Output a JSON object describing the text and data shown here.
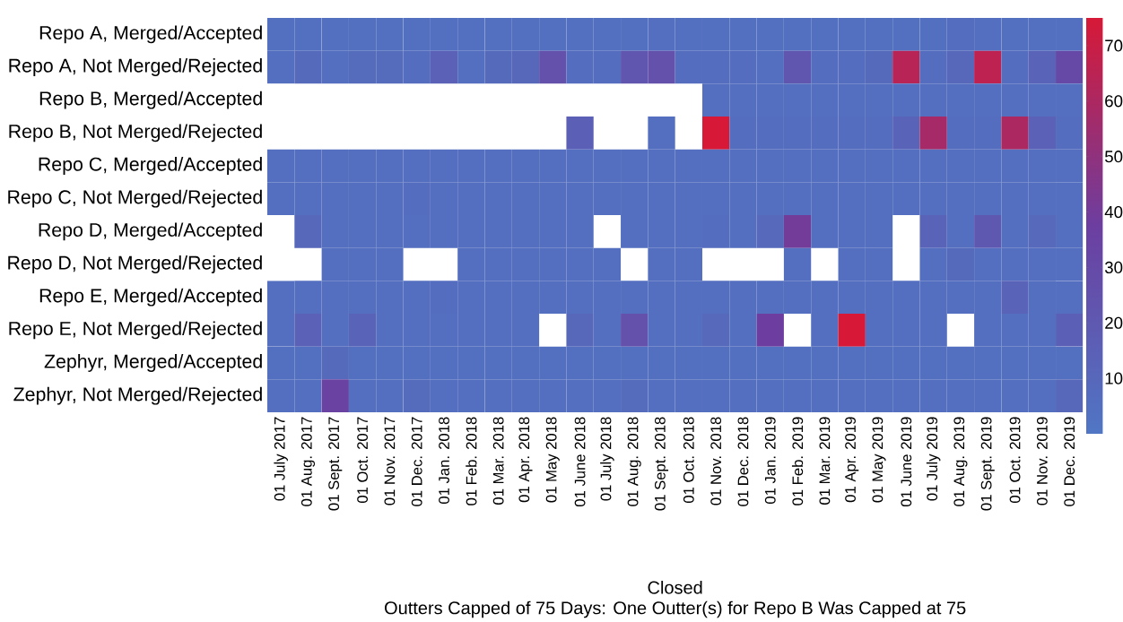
{
  "chart_data": {
    "type": "heatmap",
    "xlabel": "Closed",
    "annotations": [
      "Outters Capped of 75 Days: One Outter(s) for Repo B Was Capped at 75"
    ],
    "categories": [
      "01 July 2017",
      "01 Aug. 2017",
      "01 Sept. 2017",
      "01 Oct. 2017",
      "01 Nov. 2017",
      "01 Dec. 2017",
      "01 Jan. 2018",
      "01 Feb. 2018",
      "01 Mar. 2018",
      "01 Apr. 2018",
      "01 May 2018",
      "01 June 2018",
      "01 July 2018",
      "01 Aug. 2018",
      "01 Sept. 2018",
      "01 Oct. 2018",
      "01 Nov. 2018",
      "01 Dec. 2018",
      "01 Jan. 2019",
      "01 Feb. 2019",
      "01 Mar. 2019",
      "01 Apr. 2019",
      "01 May 2019",
      "01 June 2019",
      "01 July 2019",
      "01 Aug. 2019",
      "01 Sept. 2019",
      "01 Oct. 2019",
      "01 Nov. 2019",
      "01 Dec. 2019"
    ],
    "y_categories": [
      "Repo A, Merged/Accepted",
      "Repo A, Not Merged/Rejected",
      "Repo B, Merged/Accepted",
      "Repo B, Not Merged/Rejected",
      "Repo C, Merged/Accepted",
      "Repo C, Not Merged/Rejected",
      "Repo D, Merged/Accepted",
      "Repo D, Not Merged/Rejected",
      "Repo E, Merged/Accepted",
      "Repo E, Not Merged/Rejected",
      "Zephyr, Merged/Accepted",
      "Zephyr, Not Merged/Rejected"
    ],
    "cells": [
      [
        4,
        4,
        4,
        4,
        4,
        4,
        4,
        4,
        4,
        4,
        4,
        4,
        4,
        4,
        5,
        4,
        4,
        4,
        4,
        4,
        4,
        4,
        4,
        4,
        4,
        6,
        5,
        4,
        4,
        4
      ],
      [
        5,
        8,
        5,
        7,
        7,
        6,
        14,
        5,
        8,
        10,
        25,
        6,
        6,
        22,
        25,
        6,
        6,
        6,
        5,
        22,
        6,
        6,
        8,
        64,
        6,
        10,
        66,
        6,
        12,
        30
      ],
      [
        null,
        null,
        null,
        null,
        null,
        null,
        null,
        null,
        null,
        null,
        null,
        null,
        null,
        null,
        null,
        null,
        5,
        5,
        5,
        5,
        5,
        5,
        5,
        5,
        5,
        5,
        5,
        5,
        5,
        5
      ],
      [
        null,
        null,
        null,
        null,
        null,
        null,
        null,
        null,
        null,
        null,
        null,
        15,
        null,
        null,
        5,
        null,
        75,
        6,
        6,
        6,
        6,
        6,
        6,
        12,
        58,
        6,
        6,
        60,
        14,
        6
      ],
      [
        5,
        5,
        5,
        5,
        5,
        5,
        5,
        5,
        5,
        5,
        5,
        5,
        5,
        5,
        5,
        5,
        5,
        5,
        5,
        5,
        5,
        5,
        5,
        5,
        5,
        5,
        5,
        5,
        5,
        5
      ],
      [
        5,
        5,
        5,
        5,
        5,
        6,
        5,
        5,
        5,
        5,
        5,
        5,
        5,
        5,
        5,
        5,
        5,
        5,
        5,
        5,
        5,
        5,
        5,
        5,
        5,
        5,
        5,
        5,
        5,
        5
      ],
      [
        null,
        10,
        5,
        5,
        5,
        5,
        5,
        5,
        5,
        5,
        5,
        5,
        null,
        5,
        5,
        5,
        6,
        5,
        9,
        40,
        5,
        5,
        5,
        null,
        12,
        5,
        20,
        5,
        9,
        5
      ],
      [
        null,
        null,
        5,
        5,
        5,
        null,
        null,
        5,
        5,
        5,
        5,
        5,
        5,
        null,
        5,
        5,
        null,
        null,
        null,
        5,
        null,
        5,
        5,
        null,
        5,
        8,
        5,
        5,
        5,
        5
      ],
      [
        5,
        5,
        5,
        5,
        5,
        5,
        6,
        5,
        5,
        5,
        5,
        5,
        5,
        5,
        5,
        5,
        5,
        5,
        5,
        5,
        5,
        5,
        5,
        5,
        5,
        5,
        5,
        12,
        5,
        5
      ],
      [
        5,
        14,
        5,
        12,
        5,
        5,
        5,
        5,
        5,
        5,
        null,
        10,
        5,
        25,
        5,
        5,
        9,
        5,
        38,
        null,
        5,
        75,
        5,
        5,
        5,
        null,
        5,
        5,
        5,
        15
      ],
      [
        4,
        4,
        8,
        4,
        4,
        4,
        4,
        4,
        4,
        4,
        4,
        4,
        4,
        4,
        4,
        4,
        4,
        4,
        4,
        4,
        4,
        4,
        4,
        4,
        4,
        4,
        4,
        4,
        4,
        4
      ],
      [
        5,
        5,
        35,
        5,
        5,
        7,
        5,
        5,
        5,
        5,
        5,
        5,
        5,
        7,
        5,
        5,
        5,
        5,
        5,
        5,
        5,
        5,
        5,
        5,
        5,
        5,
        5,
        5,
        5,
        10
      ]
    ],
    "clim": [
      0,
      75
    ],
    "cticks": [
      10,
      20,
      30,
      40,
      50,
      60,
      70
    ]
  }
}
